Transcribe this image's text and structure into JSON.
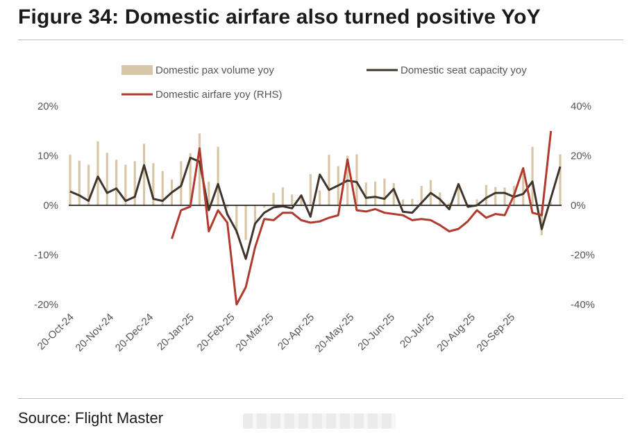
{
  "title": "Figure 34: Domestic airfare also turned positive YoY",
  "source": "Source: Flight Master",
  "colors": {
    "bars": "#d8c7a6",
    "capacity": "#3f352d",
    "airfare": "#b03a2e",
    "zero_line": "#000000"
  },
  "chart_data": {
    "type": "bar+line",
    "legend_position": "top",
    "grid": false,
    "yaxis_left": {
      "ylim": [
        -20,
        20
      ],
      "ticks": [
        "20%",
        "10%",
        "0%",
        "-10%",
        "-20%"
      ],
      "tick_values": [
        20,
        10,
        0,
        -10,
        -20
      ]
    },
    "yaxis_right": {
      "ylim": [
        -40,
        40
      ],
      "ticks": [
        "40%",
        "20%",
        "0%",
        "-20%",
        "-40%"
      ],
      "tick_values": [
        40,
        20,
        0,
        -20,
        -40
      ]
    },
    "x_tick_labels": [
      "20-Oct-24",
      "20-Nov-24",
      "20-Dec-24",
      "20-Jan-25",
      "20-Feb-25",
      "20-Mar-25",
      "20-Apr-25",
      "20-May-25",
      "20-Jun-25",
      "20-Jul-25",
      "20-Aug-25",
      "20-Sep-25"
    ],
    "x_tick_weeks": [
      0,
      4.3,
      8.6,
      13,
      17.4,
      21.6,
      26,
      30.3,
      34.7,
      39,
      43.4,
      47.7
    ],
    "series": [
      {
        "name": "Domestic pax volume yoy",
        "type": "bar",
        "axis": "left",
        "values": [
          10.2,
          9.0,
          8.2,
          12.9,
          10.6,
          9.2,
          8.2,
          8.9,
          12.4,
          8.5,
          6.9,
          5.2,
          8.9,
          10.5,
          14.5,
          4.8,
          11.8,
          -0.5,
          -5.8,
          -7.0,
          -4.0,
          -0.5,
          2.5,
          3.6,
          2.2,
          1.8,
          6.3,
          3.0,
          10.2,
          7.9,
          10.0,
          10.3,
          4.6,
          4.8,
          5.4,
          4.5,
          1.2,
          1.3,
          3.9,
          5.1,
          2.6,
          0.5,
          4.0,
          0.3,
          1.2,
          4.1,
          3.7,
          3.6,
          3.9,
          6.4,
          11.8,
          -6.0,
          0.6,
          10.3
        ]
      },
      {
        "name": "Domestic seat capacity yoy",
        "type": "line",
        "axis": "left",
        "values": [
          2.8,
          2.0,
          0.9,
          5.8,
          2.5,
          3.4,
          0.9,
          1.7,
          8.1,
          1.3,
          0.9,
          2.6,
          3.9,
          9.6,
          8.8,
          -1.0,
          4.3,
          -1.8,
          -5.2,
          -10.8,
          -3.7,
          -1.5,
          -0.4,
          -0.2,
          -0.6,
          2.0,
          -2.3,
          6.2,
          3.1,
          4.0,
          5.0,
          4.7,
          1.5,
          1.7,
          1.3,
          3.3,
          -1.3,
          -1.5,
          0.5,
          2.5,
          1.2,
          -0.8,
          4.3,
          -0.3,
          0.0,
          1.5,
          2.5,
          2.5,
          1.7,
          2.3,
          4.8,
          -4.8,
          1.5,
          7.8
        ]
      },
      {
        "name": "Domestic airfare yoy (RHS)",
        "type": "line",
        "axis": "right",
        "start_index": 11,
        "values": [
          -13.5,
          -2.0,
          -0.5,
          23.0,
          -10.5,
          -2.0,
          -7.0,
          -40.0,
          -33.0,
          -17.0,
          -5.5,
          -6.0,
          -3.0,
          -3.0,
          -6.0,
          -7.0,
          -6.5,
          -5.0,
          -4.0,
          18.5,
          -2.0,
          -2.5,
          -1.5,
          -3.0,
          -3.5,
          -4.0,
          -6.0,
          -5.5,
          -6.0,
          -8.0,
          -10.5,
          -9.5,
          -6.5,
          -2.0,
          -5.0,
          -3.5,
          -4.0,
          4.0,
          15.0,
          -3.0,
          -4.0,
          30.0
        ]
      }
    ]
  }
}
